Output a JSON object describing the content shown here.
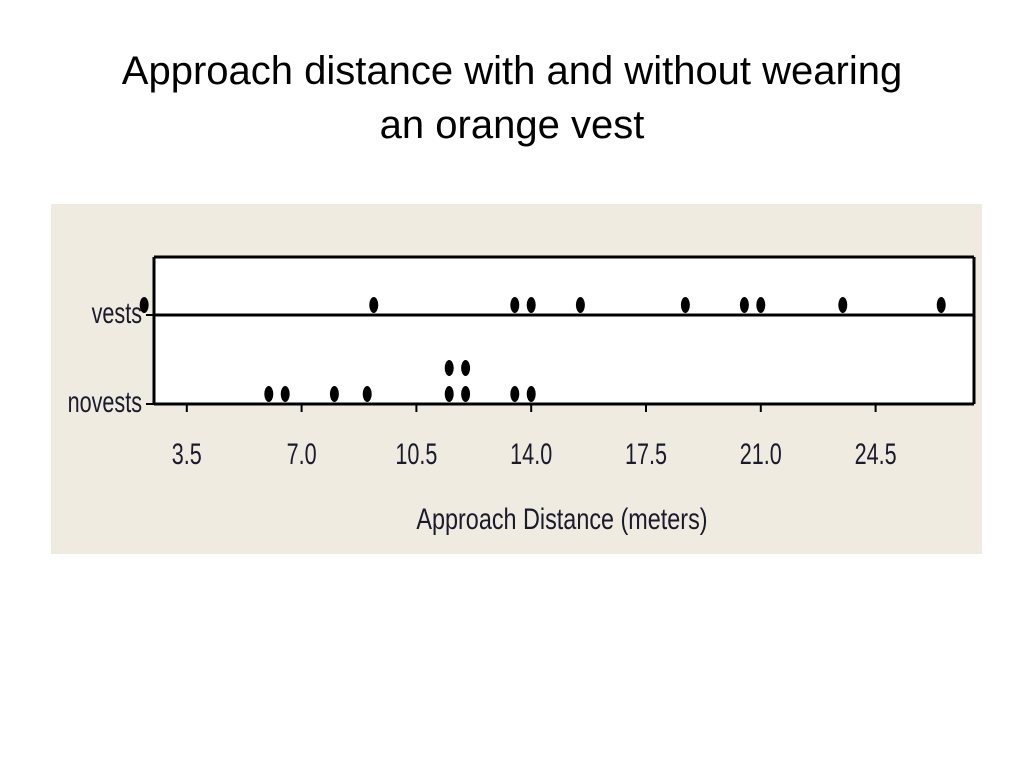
{
  "slide": {
    "title_line1": "Approach distance with and without wearing",
    "title_line2": "an orange vest"
  },
  "colors": {
    "panel_background": "#efebe1",
    "plot_background": "#ffffff",
    "dot": "#000000",
    "text": "#1a1a2a"
  },
  "chart_data": {
    "type": "scatter",
    "subtype": "dotplot",
    "title": "",
    "xlabel": "Approach Distance (meters)",
    "ylabel": "",
    "xlim": [
      2.5,
      27.5
    ],
    "x_ticks": [
      "3.5",
      "7.0",
      "10.5",
      "14.0",
      "17.5",
      "21.0",
      "24.5"
    ],
    "x_tick_values": [
      3.5,
      7.0,
      10.5,
      14.0,
      17.5,
      21.0,
      24.5
    ],
    "categories": [
      "vests",
      "novests"
    ],
    "grid": false,
    "legend": "none",
    "series": [
      {
        "name": "vests",
        "values": [
          2.2,
          9.2,
          13.5,
          14.0,
          15.5,
          18.7,
          20.5,
          21.0,
          23.5,
          26.5
        ]
      },
      {
        "name": "novests",
        "values": [
          6.0,
          6.5,
          8.0,
          9.0,
          11.5,
          11.5,
          12.0,
          12.0,
          13.5,
          14.0
        ]
      }
    ]
  }
}
